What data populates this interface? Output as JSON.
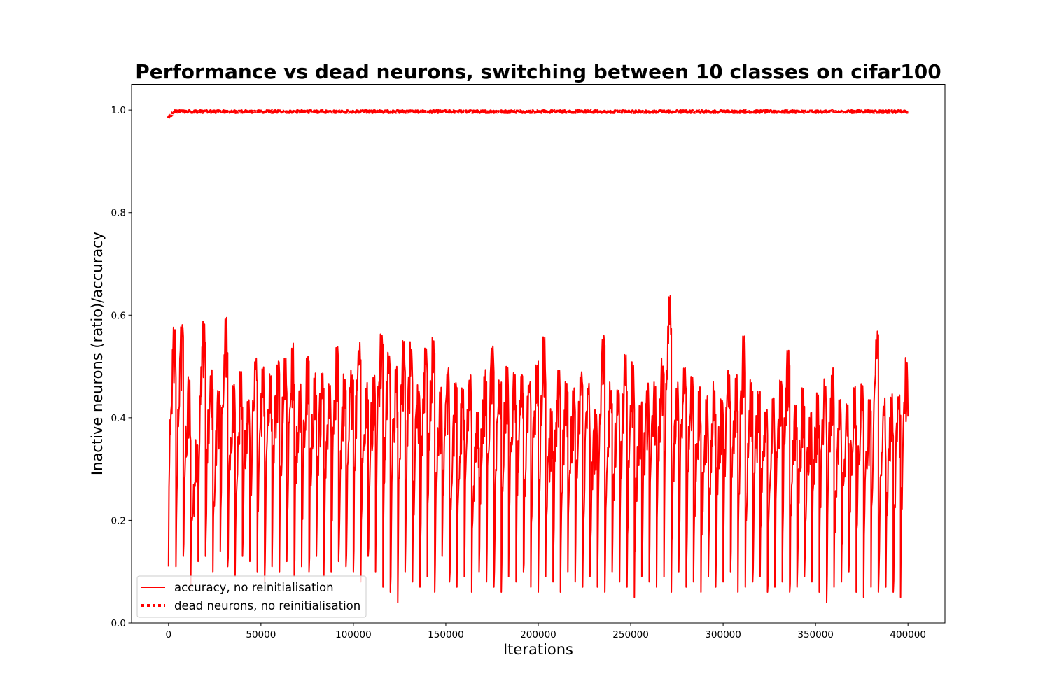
{
  "chart_data": {
    "type": "line",
    "title": "Performance vs dead neurons, switching between 10 classes on cifar100",
    "xlabel": "Iterations",
    "ylabel": "Inactive neurons (ratio)/accuracy",
    "xlim": [
      -20000,
      420000
    ],
    "ylim": [
      -0.0,
      1.05
    ],
    "x_ticks": [
      0,
      50000,
      100000,
      150000,
      200000,
      250000,
      300000,
      350000,
      400000
    ],
    "x_tick_labels": [
      "0",
      "50000",
      "100000",
      "150000",
      "200000",
      "250000",
      "300000",
      "350000",
      "400000"
    ],
    "y_ticks": [
      0.0,
      0.2,
      0.4,
      0.6,
      0.8,
      1.0
    ],
    "y_tick_labels": [
      "0.0",
      "0.2",
      "0.4",
      "0.6",
      "0.8",
      "1.0"
    ],
    "grid": false,
    "legend_position": "lower-left",
    "series": [
      {
        "name": "accuracy, no reinitialisation",
        "style": "solid",
        "color": "#ff0000",
        "task_switch_interval": 4000,
        "x_range": [
          0,
          400000
        ],
        "task_start_values": [
          0.11,
          0.11,
          0.13,
          0.07,
          0.12,
          0.13,
          0.1,
          0.14,
          0.11,
          0.09,
          0.13,
          0.12,
          0.1,
          0.08,
          0.11,
          0.1,
          0.12,
          0.09,
          0.11,
          0.1,
          0.13,
          0.09,
          0.1,
          0.12,
          0.11,
          0.1,
          0.08,
          0.13,
          0.1,
          0.07,
          0.06,
          0.04,
          0.1,
          0.08,
          0.07,
          0.09,
          0.06,
          0.13,
          0.08,
          0.07,
          0.09,
          0.06,
          0.1,
          0.08,
          0.07,
          0.06,
          0.09,
          0.08,
          0.1,
          0.07,
          0.06,
          0.09,
          0.08,
          0.06,
          0.1,
          0.08,
          0.07,
          0.09,
          0.07,
          0.06,
          0.1,
          0.08,
          0.07,
          0.05,
          0.09,
          0.08,
          0.07,
          0.09,
          0.06,
          0.1,
          0.07,
          0.08,
          0.06,
          0.09,
          0.07,
          0.08,
          0.1,
          0.06,
          0.07,
          0.08,
          0.09,
          0.06,
          0.07,
          0.08,
          0.06,
          0.07,
          0.09,
          0.08,
          0.06,
          0.04,
          0.07,
          0.08,
          0.1,
          0.06,
          0.05,
          0.07,
          0.06,
          0.07,
          0.06,
          0.05
        ],
        "task_peak_values": [
          0.59,
          0.59,
          0.48,
          0.36,
          0.59,
          0.5,
          0.47,
          0.61,
          0.48,
          0.49,
          0.45,
          0.52,
          0.51,
          0.49,
          0.52,
          0.53,
          0.55,
          0.47,
          0.53,
          0.49,
          0.5,
          0.47,
          0.54,
          0.49,
          0.5,
          0.55,
          0.47,
          0.49,
          0.58,
          0.54,
          0.5,
          0.55,
          0.55,
          0.47,
          0.55,
          0.56,
          0.46,
          0.5,
          0.47,
          0.47,
          0.49,
          0.43,
          0.5,
          0.55,
          0.48,
          0.51,
          0.49,
          0.5,
          0.48,
          0.52,
          0.56,
          0.42,
          0.51,
          0.48,
          0.46,
          0.49,
          0.47,
          0.42,
          0.56,
          0.47,
          0.46,
          0.53,
          0.52,
          0.44,
          0.47,
          0.48,
          0.52,
          0.64,
          0.47,
          0.51,
          0.49,
          0.46,
          0.45,
          0.47,
          0.45,
          0.5,
          0.49,
          0.56,
          0.48,
          0.46,
          0.43,
          0.45,
          0.49,
          0.55,
          0.43,
          0.46,
          0.42,
          0.45,
          0.48,
          0.5,
          0.44,
          0.43,
          0.47,
          0.47,
          0.44,
          0.57,
          0.44,
          0.45,
          0.45,
          0.52
        ]
      },
      {
        "name": "dead neurons, no reinitialisation",
        "style": "dotted",
        "color": "#ff0000",
        "x_range": [
          0,
          400000
        ],
        "approx_value": 0.997,
        "min_value": 0.985
      }
    ]
  }
}
